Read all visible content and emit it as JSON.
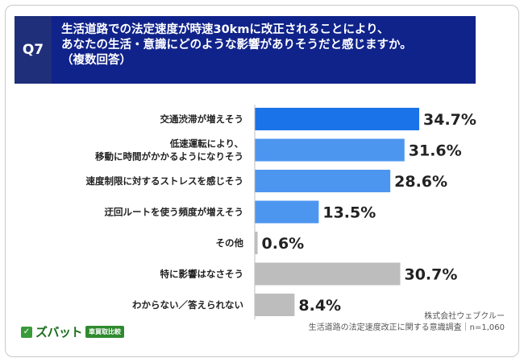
{
  "question": {
    "label": "Q7",
    "lines": [
      "生活道路での法定速度が時速30kmに改正されることにより、",
      "あなたの生活・意識にどのような影響がありそうだと感じますか。",
      "（複数回答）"
    ]
  },
  "colors": {
    "primary": "#1a73e8",
    "secondary": "#4d96f0",
    "neutral": "#bdbdbd",
    "header": "#10238a"
  },
  "chart_data": {
    "type": "bar",
    "orientation": "horizontal",
    "categories": [
      [
        "交通渋滞が増えそう"
      ],
      [
        "低速運転により、",
        "移動に時間がかかるようになりそう"
      ],
      [
        "速度制限に対するストレスを感じそう"
      ],
      [
        "迂回ルートを使う頻度が増えそう"
      ],
      [
        "その他"
      ],
      [
        "特に影響はなさそう"
      ],
      [
        "わからない／答えられない"
      ]
    ],
    "values": [
      34.7,
      31.6,
      28.6,
      13.5,
      0.6,
      30.7,
      8.4
    ],
    "value_labels": [
      "34.7%",
      "31.6%",
      "28.6%",
      "13.5%",
      "0.6%",
      "30.7%",
      "8.4%"
    ],
    "bar_colors": [
      "#1a73e8",
      "#4d96f0",
      "#4d96f0",
      "#4d96f0",
      "#bdbdbd",
      "#bdbdbd",
      "#bdbdbd"
    ],
    "xlim": [
      0,
      50
    ],
    "grid": false,
    "legend": "none"
  },
  "source": {
    "company": "株式会社ウェブクルー",
    "survey": "生活道路の法定速度改正に関する意識調査｜n=1,060"
  },
  "logo": {
    "mark": "✓",
    "name": "ズバット",
    "tag": "車買取比較"
  }
}
